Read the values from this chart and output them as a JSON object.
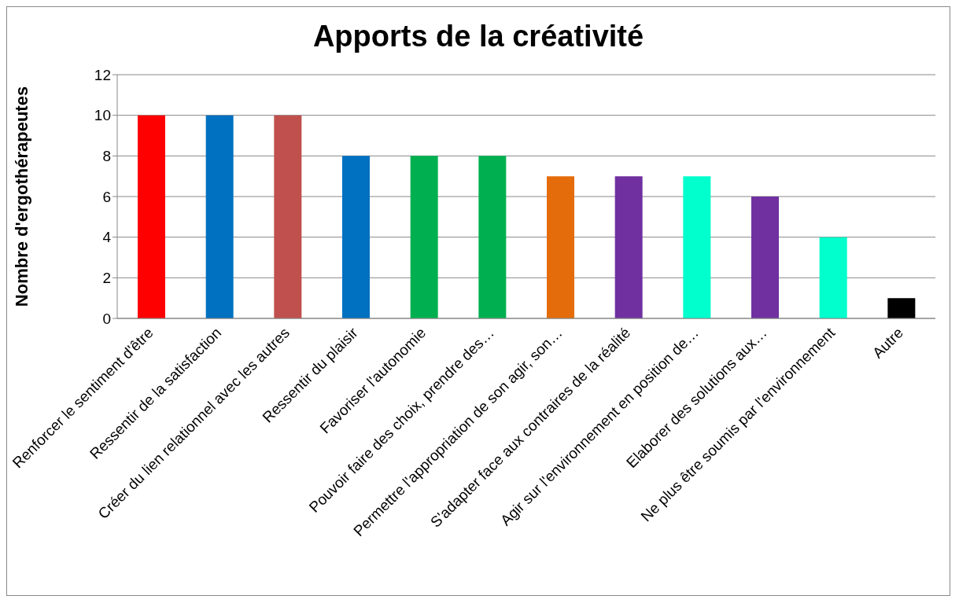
{
  "chart_data": {
    "type": "bar",
    "title": "Apports de la créativité",
    "ylabel": "Nombre d'ergothérapeutes",
    "categories": [
      "Renforcer le sentiment d'être",
      "Ressentir de la satisfaction",
      "Créer du lien relationnel avec les autres",
      "Ressentir du plaisir",
      "Favoriser l'autonomie",
      "Pouvoir faire des choix, prendre des…",
      "Permettre l'appropriation de son agir, son…",
      "S'adapter face aux contraires de la réalité",
      "Agir sur l'environnement en position de…",
      "Elaborer des solutions aux…",
      "Ne plus être soumis par l'environnement",
      "Autre"
    ],
    "values": [
      10,
      10,
      10,
      8,
      8,
      8,
      7,
      7,
      7,
      6,
      4,
      1
    ],
    "colors": [
      "#ff0000",
      "#0070c0",
      "#c0504d",
      "#0070c0",
      "#00b050",
      "#00b050",
      "#e46c0a",
      "#7030a0",
      "#00ffcc",
      "#7030a0",
      "#00ffcc",
      "#000000"
    ],
    "ylim": [
      0,
      12
    ],
    "yticks": [
      0,
      2,
      4,
      6,
      8,
      10,
      12
    ],
    "grid": "y"
  }
}
